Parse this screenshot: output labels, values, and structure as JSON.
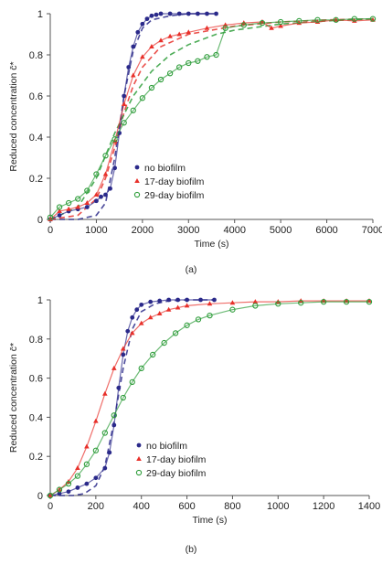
{
  "chart_data": [
    {
      "type": "scatter",
      "panel_label": "(a)",
      "xlabel": "Time (s)",
      "ylabel": "Reduced concentration c̄*",
      "xlim": [
        0,
        7000
      ],
      "ylim": [
        0,
        1
      ],
      "x_ticks": [
        "0",
        "1000",
        "2000",
        "3000",
        "4000",
        "5000",
        "6000",
        "7000"
      ],
      "y_ticks": [
        "0",
        "0.2",
        "0.4",
        "0.6",
        "0.8",
        "1"
      ],
      "legend_position": "lower-right",
      "series": [
        {
          "name": "no biofilm",
          "color": "#2b2a8a",
          "marker": "dot",
          "x": [
            0,
            200,
            400,
            600,
            800,
            1000,
            1100,
            1200,
            1300,
            1400,
            1500,
            1600,
            1700,
            1800,
            1900,
            2000,
            2100,
            2200,
            2300,
            2400,
            2600,
            2800,
            3000,
            3200,
            3400,
            3600
          ],
          "y": [
            0,
            0.02,
            0.04,
            0.05,
            0.06,
            0.09,
            0.11,
            0.12,
            0.15,
            0.25,
            0.42,
            0.6,
            0.74,
            0.84,
            0.91,
            0.95,
            0.975,
            0.99,
            0.995,
            1.0,
            1.0,
            1.0,
            1.0,
            1.0,
            1.0,
            1.0
          ]
        },
        {
          "name": "17-day biofilm",
          "color": "#e8312b",
          "marker": "triangle",
          "x": [
            0,
            200,
            400,
            600,
            800,
            1000,
            1200,
            1400,
            1600,
            1800,
            2000,
            2200,
            2400,
            2600,
            2800,
            3000,
            3400,
            3800,
            4200,
            4600,
            4800,
            5000,
            5400,
            5800,
            6200,
            6600,
            7000
          ],
          "y": [
            0,
            0.04,
            0.05,
            0.06,
            0.08,
            0.12,
            0.22,
            0.38,
            0.56,
            0.7,
            0.79,
            0.84,
            0.87,
            0.89,
            0.9,
            0.91,
            0.93,
            0.945,
            0.955,
            0.96,
            0.93,
            0.94,
            0.955,
            0.96,
            0.97,
            0.965,
            0.97
          ]
        },
        {
          "name": "29-day biofilm",
          "color": "#2e9d3a",
          "marker": "circle",
          "x": [
            0,
            200,
            400,
            600,
            800,
            1000,
            1200,
            1400,
            1600,
            1800,
            2000,
            2200,
            2400,
            2600,
            2800,
            3000,
            3200,
            3400,
            3600,
            3800,
            4200,
            4600,
            5000,
            5400,
            5800,
            6200,
            6600,
            7000
          ],
          "y": [
            0.01,
            0.06,
            0.08,
            0.1,
            0.14,
            0.22,
            0.31,
            0.39,
            0.47,
            0.53,
            0.59,
            0.64,
            0.68,
            0.71,
            0.74,
            0.76,
            0.77,
            0.79,
            0.8,
            0.93,
            0.945,
            0.955,
            0.96,
            0.965,
            0.97,
            0.97,
            0.975,
            0.975
          ]
        }
      ],
      "fit_curves": [
        {
          "color": "#2b2a8a",
          "x": [
            0,
            600,
            1000,
            1200,
            1400,
            1600,
            1800,
            2000,
            2200,
            2600,
            3000,
            3600
          ],
          "y": [
            0,
            0,
            0.02,
            0.08,
            0.3,
            0.6,
            0.82,
            0.93,
            0.97,
            0.99,
            1.0,
            1.0
          ]
        },
        {
          "color": "#e8312b",
          "x": [
            0,
            600,
            1000,
            1200,
            1400,
            1600,
            1800,
            2000,
            2400,
            3000,
            4000,
            5000,
            6000,
            7000
          ],
          "y": [
            0,
            0.02,
            0.1,
            0.2,
            0.35,
            0.52,
            0.65,
            0.74,
            0.84,
            0.9,
            0.94,
            0.96,
            0.97,
            0.975
          ]
        },
        {
          "color": "#2e9d3a",
          "x": [
            0,
            600,
            1000,
            1400,
            1800,
            2200,
            2600,
            3000,
            3600,
            4000,
            5000,
            6000,
            7000
          ],
          "y": [
            0,
            0.06,
            0.2,
            0.42,
            0.6,
            0.72,
            0.8,
            0.85,
            0.9,
            0.92,
            0.95,
            0.965,
            0.975
          ]
        }
      ]
    },
    {
      "type": "scatter",
      "panel_label": "(b)",
      "xlabel": "Time (s)",
      "ylabel": "Reduced concentration c̄*",
      "xlim": [
        0,
        1400
      ],
      "ylim": [
        0,
        1
      ],
      "x_ticks": [
        "0",
        "200",
        "400",
        "600",
        "800",
        "1000",
        "1200",
        "1400"
      ],
      "y_ticks": [
        "0",
        "0.2",
        "0.4",
        "0.6",
        "0.8",
        "1"
      ],
      "legend_position": "lower-right",
      "series": [
        {
          "name": "no biofilm",
          "color": "#2b2a8a",
          "marker": "dot",
          "x": [
            0,
            40,
            80,
            120,
            160,
            200,
            240,
            260,
            280,
            300,
            320,
            340,
            360,
            380,
            400,
            440,
            480,
            520,
            560,
            600,
            660,
            720
          ],
          "y": [
            0,
            0.01,
            0.02,
            0.04,
            0.06,
            0.09,
            0.14,
            0.22,
            0.36,
            0.55,
            0.72,
            0.84,
            0.91,
            0.95,
            0.975,
            0.99,
            0.995,
            1.0,
            1.0,
            1.0,
            1.0,
            1.0
          ]
        },
        {
          "name": "17-day biofilm",
          "color": "#e8312b",
          "marker": "triangle",
          "x": [
            0,
            40,
            80,
            120,
            160,
            200,
            240,
            280,
            320,
            360,
            400,
            440,
            480,
            520,
            560,
            600,
            700,
            800,
            900,
            1000,
            1100,
            1200,
            1300,
            1400
          ],
          "y": [
            0,
            0.03,
            0.07,
            0.14,
            0.25,
            0.38,
            0.52,
            0.65,
            0.75,
            0.83,
            0.88,
            0.91,
            0.93,
            0.95,
            0.96,
            0.97,
            0.98,
            0.985,
            0.99,
            0.99,
            0.995,
            0.995,
            0.995,
            0.995
          ]
        },
        {
          "name": "29-day biofilm",
          "color": "#2e9d3a",
          "marker": "circle",
          "x": [
            0,
            40,
            80,
            120,
            160,
            200,
            240,
            280,
            320,
            360,
            400,
            450,
            500,
            550,
            600,
            650,
            700,
            800,
            900,
            1000,
            1100,
            1200,
            1300,
            1400
          ],
          "y": [
            0,
            0.03,
            0.06,
            0.1,
            0.16,
            0.23,
            0.32,
            0.41,
            0.5,
            0.58,
            0.65,
            0.72,
            0.78,
            0.83,
            0.87,
            0.9,
            0.92,
            0.95,
            0.97,
            0.98,
            0.985,
            0.99,
            0.99,
            0.99
          ]
        }
      ],
      "fit_curves": [
        {
          "color": "#2b2a8a",
          "x": [
            0,
            100,
            150,
            200,
            240,
            280,
            320,
            360,
            400,
            460,
            520,
            600,
            720
          ],
          "y": [
            0,
            0,
            0.01,
            0.05,
            0.15,
            0.38,
            0.65,
            0.85,
            0.94,
            0.98,
            0.995,
            1.0,
            1.0
          ]
        }
      ]
    }
  ]
}
